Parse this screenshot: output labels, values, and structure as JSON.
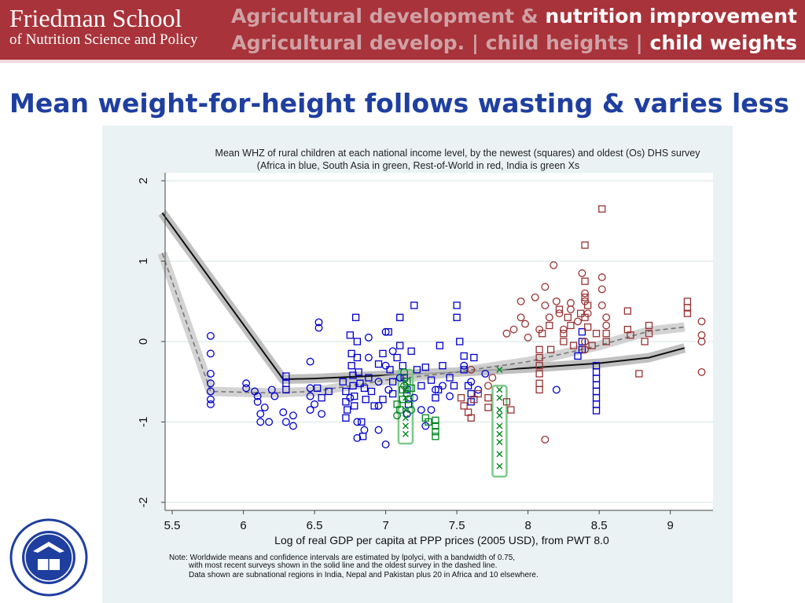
{
  "header": {
    "logo_line1": "Friedman School",
    "logo_line2": "of Nutrition Science and Policy",
    "nav_line1_dim": "Agricultural development &",
    "nav_line1_active": "nutrition improvement",
    "nav_line2_item1": "Agricultural develop.",
    "nav_line2_item2": "child heights",
    "nav_line2_item3": "child weights",
    "nav_separator": "|"
  },
  "slide_title": "Mean weight-for-height follows wasting & varies less",
  "seal": {
    "label": "SIGILLUM UNIVERSITATIS TUFTENSIS PAX ET LUX 1852",
    "icon": "university-seal-icon"
  },
  "colors": {
    "header_bg": "#a8333a",
    "title_blue": "#1f3fa0",
    "africa": "#0000cc",
    "south_asia": "#00861f",
    "rest_of_world": "#993333",
    "india_box": "#7cc98a",
    "panel_bg": "#eaf2f3"
  },
  "chart_data": {
    "type": "scatter",
    "title": "Mean WHZ of rural children at each national income level, by the newest (squares) and oldest (Os) DHS survey",
    "subtitle": "(Africa in blue, South Asia in green, Rest-of-World in red, India is green Xs",
    "xlabel": "Log of real GDP per capita at PPP prices (2005 USD), from PWT 8.0",
    "ylabel": "",
    "xlim": [
      5.45,
      9.3
    ],
    "ylim": [
      -2.1,
      2.1
    ],
    "xticks": [
      "5.5",
      "6",
      "6.5",
      "7",
      "7.5",
      "8",
      "8.5",
      "9"
    ],
    "yticks": [
      "-2",
      "-1",
      "0",
      "1",
      "2"
    ],
    "grid": true,
    "notes": [
      "Note: Worldwide means and confidence intervals are estimated by lpolyci, with a bandwidth of 0.75,",
      "with most recent surveys shown in the solid line and the oldest survey in the dashed line.",
      "Data shown are subnational regions in India, Nepal and Pakistan plus 20 in Africa and 10 elsewhere."
    ],
    "series": [
      {
        "marker": "square",
        "color": "#0000cc",
        "points": [
          [
            6.3,
            -0.43
          ],
          [
            6.3,
            -0.52
          ],
          [
            6.3,
            -0.6
          ],
          [
            6.52,
            -0.58
          ],
          [
            6.55,
            -0.7
          ],
          [
            6.6,
            -0.62
          ],
          [
            6.7,
            -0.5
          ],
          [
            6.72,
            -0.62
          ],
          [
            6.72,
            -0.75
          ],
          [
            6.73,
            -0.85
          ],
          [
            6.72,
            -0.95
          ],
          [
            6.75,
            0.08
          ],
          [
            6.76,
            -0.15
          ],
          [
            6.76,
            -0.3
          ],
          [
            6.77,
            -0.42
          ],
          [
            6.77,
            -0.55
          ],
          [
            6.78,
            -0.68
          ],
          [
            6.78,
            -0.8
          ],
          [
            6.79,
            0.3
          ],
          [
            6.8,
            0.0
          ],
          [
            6.8,
            -0.2
          ],
          [
            6.81,
            -0.38
          ],
          [
            6.82,
            -0.52
          ],
          [
            6.83,
            -1.0
          ],
          [
            6.84,
            -1.18
          ],
          [
            6.85,
            -0.58
          ],
          [
            6.86,
            -0.72
          ],
          [
            6.88,
            -0.45
          ],
          [
            6.9,
            -0.62
          ],
          [
            6.92,
            -0.8
          ],
          [
            6.95,
            -0.28
          ],
          [
            6.98,
            -0.15
          ],
          [
            6.98,
            -0.72
          ],
          [
            7.02,
            0.12
          ],
          [
            7.03,
            -0.35
          ],
          [
            7.05,
            -0.5
          ],
          [
            7.05,
            -0.65
          ],
          [
            7.08,
            -0.2
          ],
          [
            7.1,
            0.3
          ],
          [
            7.1,
            -0.05
          ],
          [
            7.12,
            -0.3
          ],
          [
            7.13,
            -0.45
          ],
          [
            7.15,
            -0.6
          ],
          [
            7.16,
            -0.78
          ],
          [
            7.18,
            -0.12
          ],
          [
            7.2,
            0.45
          ],
          [
            7.22,
            -0.35
          ],
          [
            7.25,
            -0.55
          ],
          [
            7.28,
            -0.32
          ],
          [
            7.32,
            -0.48
          ],
          [
            7.35,
            -0.7
          ],
          [
            7.37,
            -0.6
          ],
          [
            7.38,
            -0.05
          ],
          [
            7.4,
            -0.3
          ],
          [
            7.45,
            -0.45
          ],
          [
            7.48,
            -0.55
          ],
          [
            7.5,
            0.3
          ],
          [
            7.5,
            0.45
          ],
          [
            7.52,
            0.0
          ],
          [
            7.55,
            -0.18
          ],
          [
            7.55,
            -0.35
          ],
          [
            7.58,
            -0.55
          ],
          [
            7.6,
            -0.65
          ],
          [
            7.6,
            -0.75
          ],
          [
            7.62,
            -0.2
          ],
          [
            8.48,
            -0.3
          ],
          [
            8.48,
            -0.38
          ],
          [
            8.48,
            -0.46
          ],
          [
            8.48,
            -0.54
          ],
          [
            8.48,
            -0.62
          ],
          [
            8.48,
            -0.7
          ],
          [
            8.48,
            -0.78
          ],
          [
            8.48,
            -0.86
          ],
          [
            8.38,
            0.12
          ],
          [
            8.38,
            0.0
          ],
          [
            8.38,
            -0.1
          ],
          [
            8.35,
            -0.18
          ]
        ]
      },
      {
        "marker": "circle",
        "color": "#0000cc",
        "points": [
          [
            5.77,
            0.07
          ],
          [
            5.77,
            -0.15
          ],
          [
            5.77,
            -0.4
          ],
          [
            5.77,
            -0.52
          ],
          [
            5.77,
            -0.62
          ],
          [
            5.77,
            -0.72
          ],
          [
            5.77,
            -0.78
          ],
          [
            6.02,
            -0.52
          ],
          [
            6.02,
            -0.58
          ],
          [
            6.08,
            -0.62
          ],
          [
            6.1,
            -0.68
          ],
          [
            6.1,
            -0.75
          ],
          [
            6.12,
            -0.9
          ],
          [
            6.12,
            -1.0
          ],
          [
            6.15,
            -0.82
          ],
          [
            6.18,
            -1.0
          ],
          [
            6.2,
            -0.6
          ],
          [
            6.22,
            -0.68
          ],
          [
            6.28,
            -0.88
          ],
          [
            6.3,
            -1.0
          ],
          [
            6.35,
            -0.92
          ],
          [
            6.35,
            -1.05
          ],
          [
            6.47,
            -0.25
          ],
          [
            6.47,
            -0.58
          ],
          [
            6.47,
            -0.68
          ],
          [
            6.47,
            -0.85
          ],
          [
            6.53,
            0.17
          ],
          [
            6.53,
            0.24
          ],
          [
            6.5,
            -0.78
          ],
          [
            6.55,
            -0.9
          ],
          [
            6.75,
            -0.7
          ],
          [
            6.8,
            -1.0
          ],
          [
            6.8,
            -1.2
          ],
          [
            6.85,
            -1.1
          ],
          [
            6.88,
            0.05
          ],
          [
            6.88,
            -0.2
          ],
          [
            6.95,
            -0.5
          ],
          [
            6.95,
            -0.8
          ],
          [
            6.95,
            -1.1
          ],
          [
            7.0,
            0.12
          ],
          [
            7.0,
            -0.3
          ],
          [
            7.0,
            -1.28
          ],
          [
            7.02,
            -0.6
          ],
          [
            7.05,
            -0.12
          ],
          [
            7.1,
            -0.45
          ],
          [
            7.15,
            -0.9
          ],
          [
            7.2,
            -0.7
          ],
          [
            7.25,
            -0.85
          ],
          [
            7.28,
            -1.05
          ],
          [
            7.32,
            -0.85
          ],
          [
            7.35,
            -0.6
          ],
          [
            7.4,
            -0.55
          ],
          [
            7.45,
            -0.68
          ],
          [
            7.55,
            -0.3
          ],
          [
            7.6,
            -0.5
          ],
          [
            7.65,
            -0.6
          ],
          [
            7.7,
            -0.4
          ],
          [
            8.2,
            -0.6
          ]
        ]
      },
      {
        "marker": "square",
        "color": "#00861f",
        "points": [
          [
            7.08,
            -0.78
          ],
          [
            7.1,
            -0.85
          ],
          [
            7.12,
            -0.6
          ],
          [
            7.12,
            -0.72
          ],
          [
            7.15,
            -0.5
          ],
          [
            7.18,
            -0.58
          ],
          [
            7.35,
            -0.98
          ],
          [
            7.35,
            -1.05
          ],
          [
            7.35,
            -1.12
          ],
          [
            7.35,
            -1.18
          ],
          [
            7.28,
            -0.95
          ],
          [
            7.3,
            -1.0
          ]
        ]
      },
      {
        "marker": "circle",
        "color": "#00861f",
        "points": [
          [
            7.13,
            -0.38
          ],
          [
            7.13,
            -0.55
          ],
          [
            7.15,
            -0.65
          ],
          [
            7.16,
            -0.72
          ],
          [
            7.18,
            -0.85
          ],
          [
            7.08,
            -0.92
          ]
        ]
      },
      {
        "marker": "x",
        "color": "#00861f",
        "points": [
          [
            7.14,
            -0.6
          ],
          [
            7.14,
            -0.7
          ],
          [
            7.14,
            -0.85
          ],
          [
            7.14,
            -0.95
          ],
          [
            7.14,
            -1.05
          ],
          [
            7.14,
            -1.15
          ],
          [
            7.14,
            -0.5
          ],
          [
            7.8,
            -0.6
          ],
          [
            7.8,
            -0.7
          ],
          [
            7.8,
            -0.85
          ],
          [
            7.8,
            -0.92
          ],
          [
            7.8,
            -1.05
          ],
          [
            7.8,
            -1.15
          ],
          [
            7.8,
            -1.25
          ],
          [
            7.8,
            -1.4
          ],
          [
            7.8,
            -1.55
          ],
          [
            7.8,
            -0.35
          ]
        ]
      },
      {
        "marker": "square",
        "color": "#993333",
        "points": [
          [
            7.53,
            -0.7
          ],
          [
            7.55,
            -0.8
          ],
          [
            7.58,
            -0.88
          ],
          [
            7.6,
            -0.95
          ],
          [
            7.62,
            -0.72
          ],
          [
            7.65,
            -0.65
          ],
          [
            7.72,
            -0.7
          ],
          [
            7.72,
            -0.82
          ],
          [
            7.85,
            -0.75
          ],
          [
            7.88,
            -0.85
          ],
          [
            8.08,
            -0.1
          ],
          [
            8.08,
            -0.2
          ],
          [
            8.08,
            -0.3
          ],
          [
            8.08,
            -0.4
          ],
          [
            8.08,
            -0.52
          ],
          [
            8.08,
            -0.6
          ],
          [
            8.1,
            0.1
          ],
          [
            8.15,
            0.2
          ],
          [
            8.16,
            -0.1
          ],
          [
            8.22,
            0.4
          ],
          [
            8.25,
            0.1
          ],
          [
            8.25,
            0.0
          ],
          [
            8.28,
            0.3
          ],
          [
            8.3,
            0.2
          ],
          [
            8.32,
            -0.05
          ],
          [
            8.37,
            0.35
          ],
          [
            8.4,
            0.3
          ],
          [
            8.42,
            0.18
          ],
          [
            8.48,
            0.1
          ],
          [
            8.52,
            1.65
          ],
          [
            8.4,
            1.2
          ],
          [
            8.4,
            0.55
          ],
          [
            8.4,
            0.75
          ],
          [
            8.42,
            0.45
          ],
          [
            8.45,
            -0.05
          ],
          [
            8.55,
            0.0
          ],
          [
            8.55,
            0.1
          ],
          [
            8.7,
            0.38
          ],
          [
            8.7,
            0.15
          ],
          [
            8.72,
            0.08
          ],
          [
            8.78,
            -0.4
          ],
          [
            8.82,
            0.0
          ],
          [
            8.85,
            0.2
          ],
          [
            8.85,
            0.1
          ],
          [
            9.12,
            0.5
          ],
          [
            9.12,
            0.42
          ],
          [
            9.12,
            0.35
          ]
        ]
      },
      {
        "marker": "circle",
        "color": "#993333",
        "points": [
          [
            7.6,
            -0.35
          ],
          [
            7.72,
            -0.55
          ],
          [
            7.75,
            -0.45
          ],
          [
            7.85,
            0.1
          ],
          [
            7.9,
            0.15
          ],
          [
            7.95,
            0.3
          ],
          [
            7.95,
            0.5
          ],
          [
            7.98,
            0.22
          ],
          [
            8.0,
            0.05
          ],
          [
            8.05,
            0.55
          ],
          [
            8.08,
            0.15
          ],
          [
            8.12,
            0.68
          ],
          [
            8.12,
            0.45
          ],
          [
            8.15,
            0.3
          ],
          [
            8.18,
            0.95
          ],
          [
            8.2,
            0.5
          ],
          [
            8.22,
            0.35
          ],
          [
            8.25,
            0.15
          ],
          [
            8.3,
            0.48
          ],
          [
            8.3,
            0.4
          ],
          [
            8.35,
            0.25
          ],
          [
            8.38,
            0.85
          ],
          [
            8.4,
            0.6
          ],
          [
            8.4,
            0.5
          ],
          [
            8.42,
            0.35
          ],
          [
            8.52,
            0.8
          ],
          [
            8.52,
            0.65
          ],
          [
            8.52,
            0.45
          ],
          [
            8.55,
            0.3
          ],
          [
            8.55,
            0.2
          ],
          [
            9.22,
            0.25
          ],
          [
            9.22,
            0.08
          ],
          [
            9.22,
            0.0
          ],
          [
            9.22,
            -0.38
          ],
          [
            8.12,
            -1.22
          ],
          [
            8.4,
            -0.1
          ],
          [
            8.4,
            0.0
          ]
        ]
      }
    ],
    "lines": [
      {
        "name": "newest-fit",
        "style": "solid",
        "color": "#111111",
        "x": [
          5.43,
          6.28,
          6.5,
          7.0,
          7.5,
          8.0,
          8.5,
          8.85,
          9.1
        ],
        "y": [
          1.6,
          -0.47,
          -0.46,
          -0.42,
          -0.38,
          -0.33,
          -0.27,
          -0.2,
          -0.08
        ]
      },
      {
        "name": "oldest-fit",
        "style": "dashed",
        "color": "#777777",
        "x": [
          5.43,
          5.77,
          6.2,
          6.5,
          7.0,
          7.5,
          8.0,
          8.5,
          8.85,
          9.1
        ],
        "y": [
          1.1,
          -0.62,
          -0.64,
          -0.62,
          -0.48,
          -0.38,
          -0.25,
          -0.05,
          0.13,
          0.18
        ]
      }
    ],
    "india_boxes": [
      {
        "x": 7.14,
        "ymin": -1.27,
        "ymax": -0.35
      },
      {
        "x": 7.8,
        "ymin": -1.68,
        "ymax": -0.55
      }
    ]
  }
}
